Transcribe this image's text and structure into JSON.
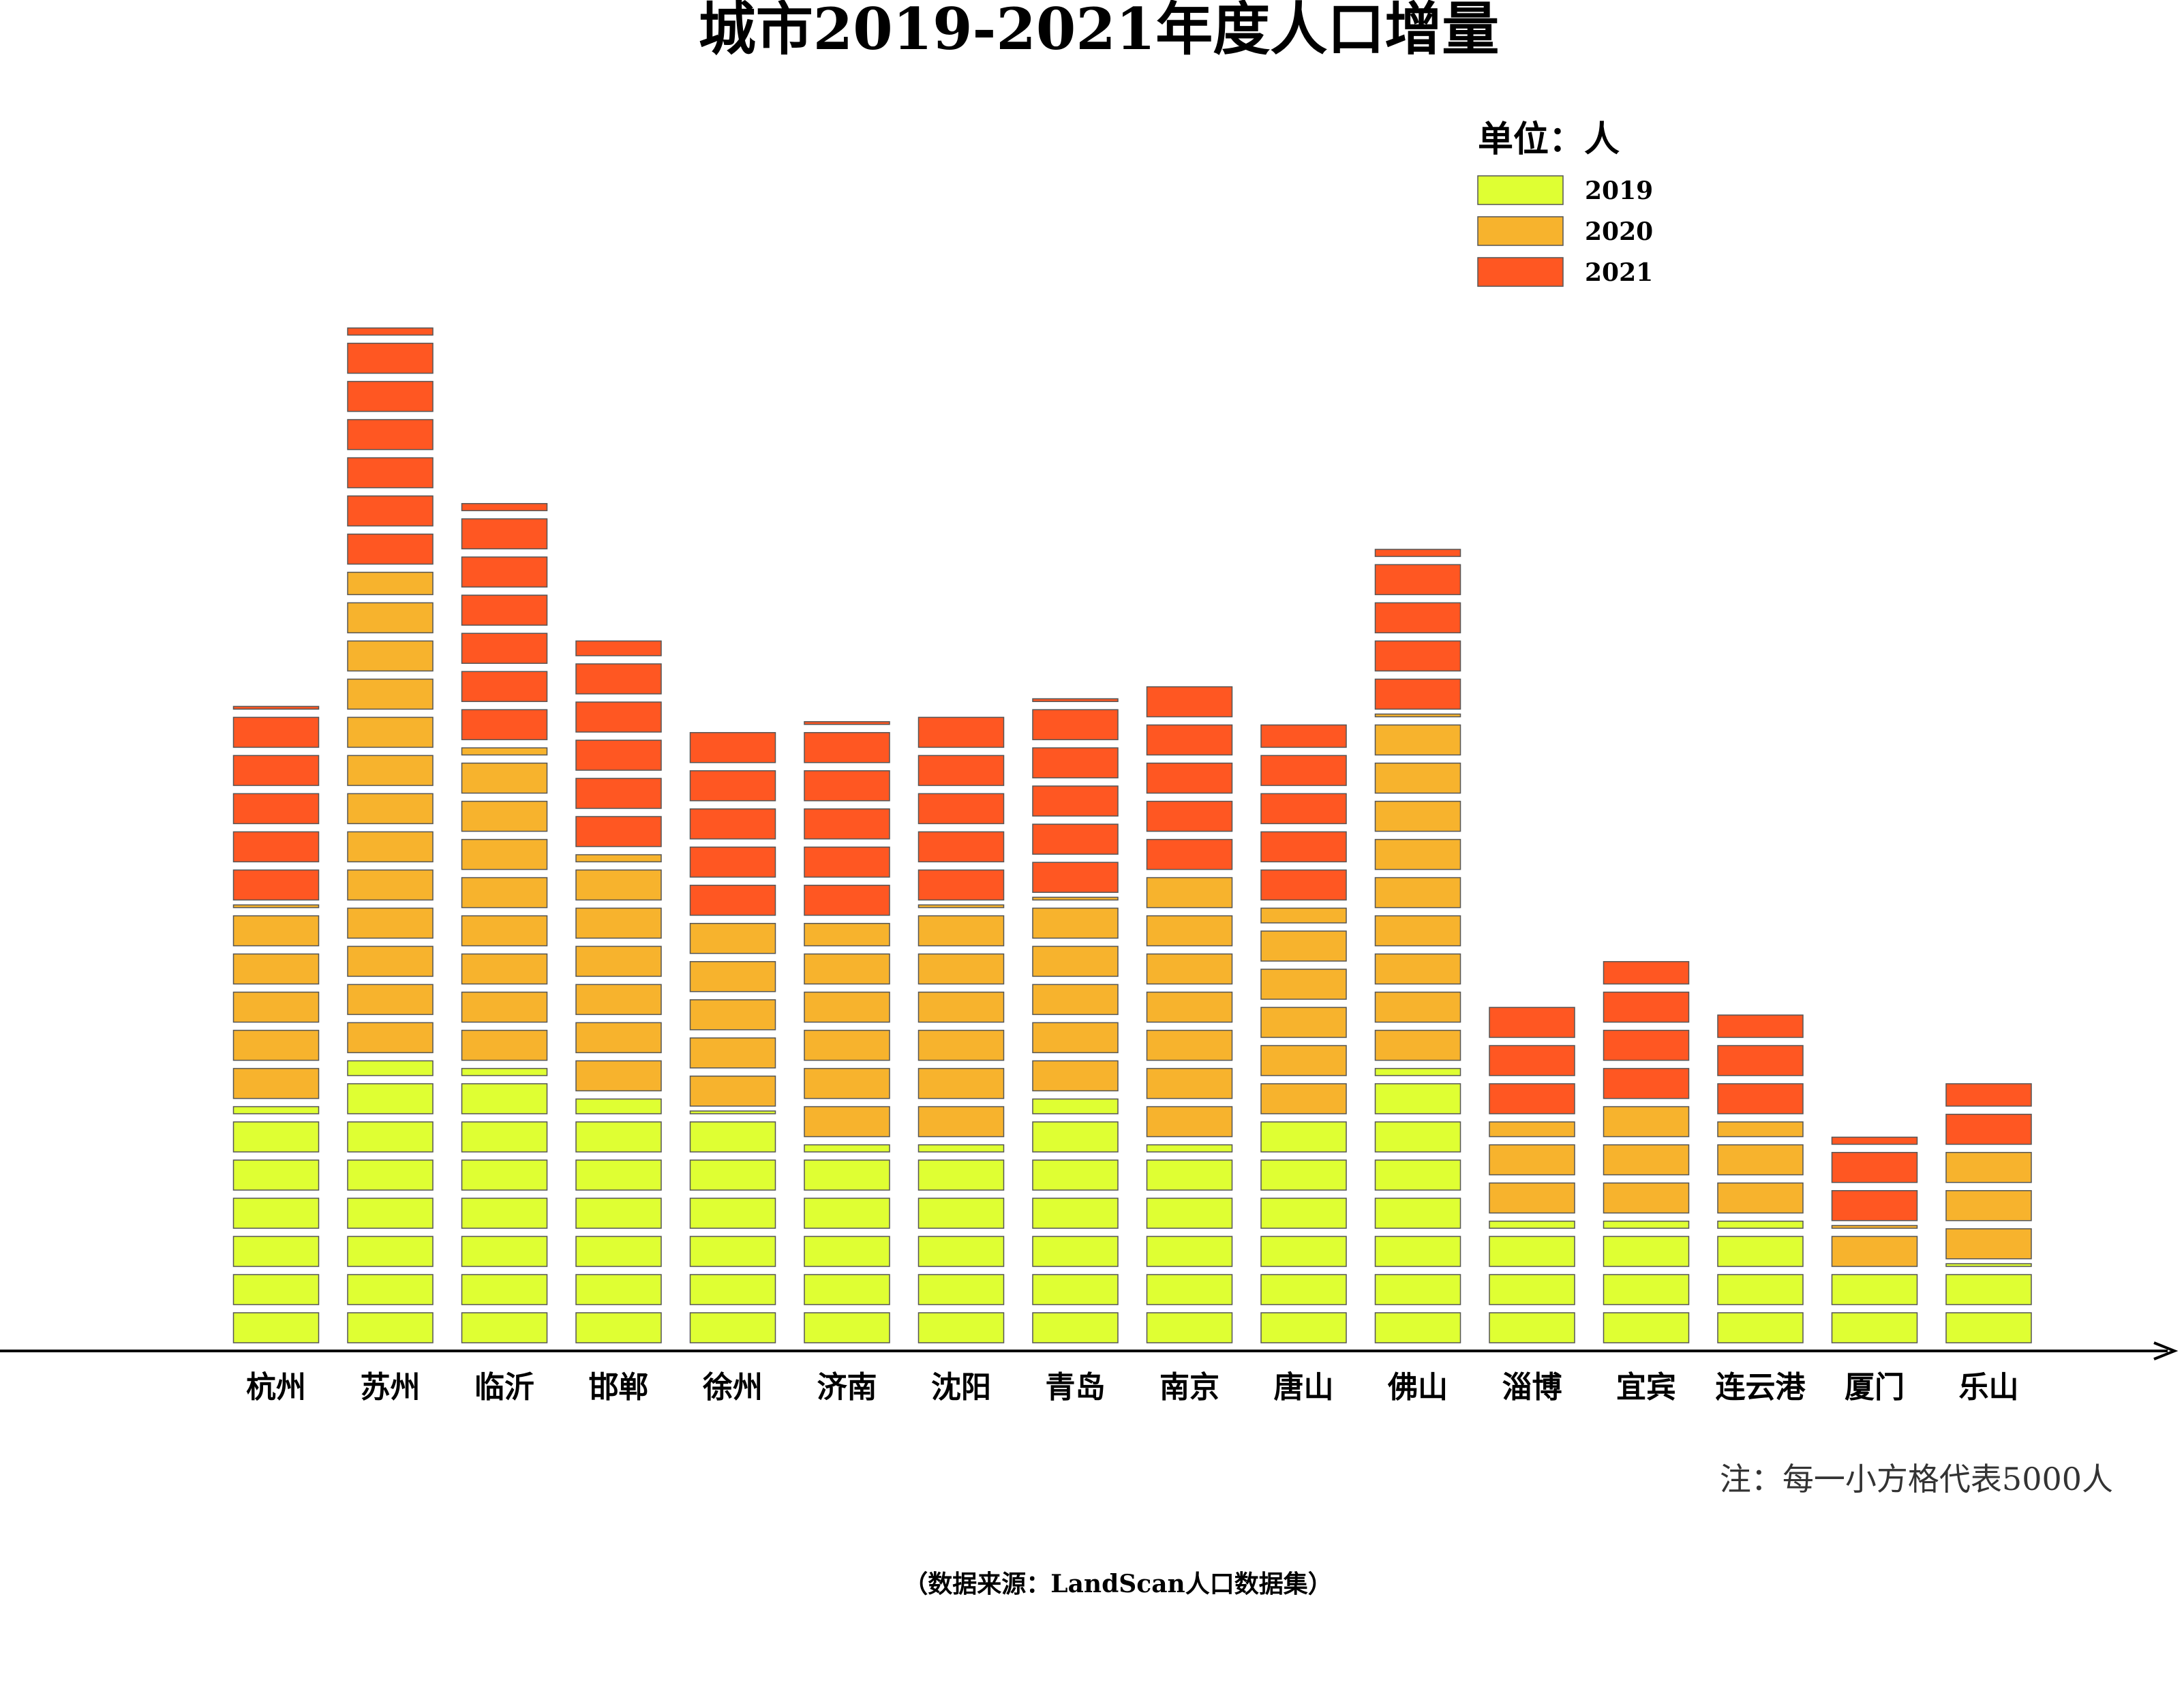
{
  "chart_data": {
    "type": "bar",
    "title": "城市2019-2021年度人口增量",
    "unit_label": "单位：人",
    "note": "注：每一小方格代表5000人",
    "source": "（数据来源：LandScan人口数据集）",
    "block_value": 5000,
    "legend_position": "top-right",
    "categories": [
      "杭州",
      "苏州",
      "临沂",
      "邯郸",
      "徐州",
      "济南",
      "沈阳",
      "青岛",
      "南京",
      "唐山",
      "佛山",
      "淄博",
      "宜宾",
      "连云港",
      "厦门",
      "乐山"
    ],
    "series": [
      {
        "name": "2019",
        "color": "#DFFF33",
        "values": [
          32000,
          38000,
          37000,
          33000,
          31000,
          27000,
          27000,
          33000,
          27000,
          30000,
          37000,
          17000,
          17000,
          17000,
          10000,
          11000
        ]
      },
      {
        "name": "2020",
        "color": "#F7B32D",
        "values": [
          26000,
          64000,
          42000,
          32000,
          25000,
          29000,
          31000,
          26000,
          35000,
          28000,
          46000,
          13000,
          15000,
          13000,
          6000,
          15000
        ]
      },
      {
        "name": "2021",
        "color": "#FF5722",
        "values": [
          26000,
          32000,
          32000,
          28000,
          25000,
          26000,
          25000,
          26000,
          25000,
          24000,
          22000,
          15000,
          19000,
          14000,
          12000,
          9000
        ]
      }
    ],
    "ylabel": "",
    "xlabel": "",
    "ylim": [
      0,
      140000
    ],
    "grid": false
  }
}
